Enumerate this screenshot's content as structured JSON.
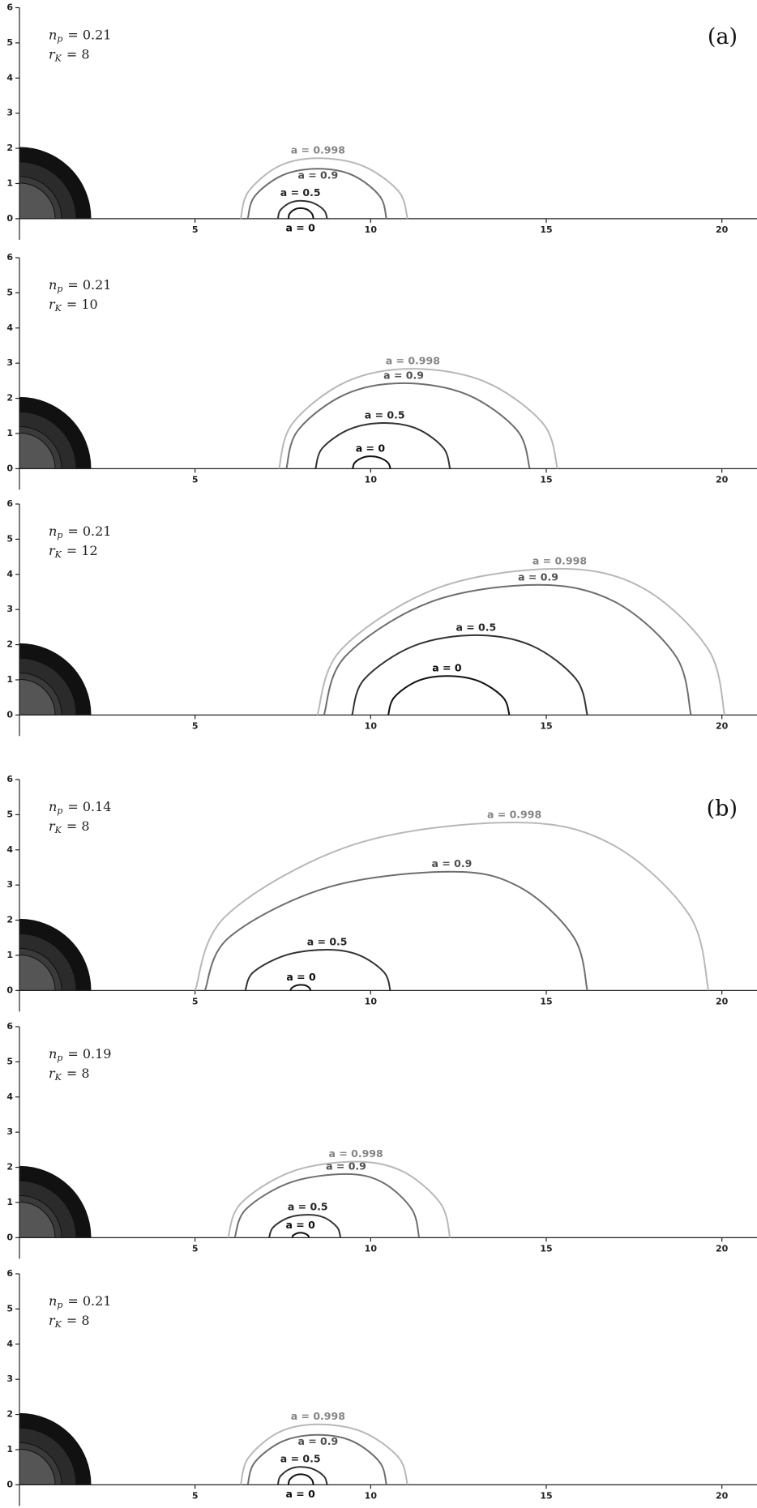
{
  "chart_data": [
    {
      "type": "line",
      "label": "(a)",
      "params": [
        {
          "symbol": "n",
          "sub": "p",
          "text": "= 0.21"
        },
        {
          "symbol": "r",
          "sub": "K",
          "text": "= 8"
        }
      ],
      "xlim": [
        0,
        21
      ],
      "ylim": [
        -0.6,
        6
      ],
      "xticks": [
        5,
        10,
        15,
        20
      ],
      "yticks": [
        0,
        1,
        2,
        3,
        4,
        5,
        6
      ],
      "series": [
        {
          "name": "a = 0",
          "color": "#111111",
          "x": [
            7.66,
            7.69,
            7.83,
            8.0,
            8.19,
            8.33,
            8.37
          ],
          "values": [
            0,
            0.14,
            0.26,
            0.3,
            0.26,
            0.14,
            0
          ]
        },
        {
          "name": "a = 0.5",
          "color": "#333333",
          "x": [
            7.36,
            7.42,
            7.68,
            8.0,
            8.38,
            8.68,
            8.76
          ],
          "values": [
            0,
            0.23,
            0.44,
            0.51,
            0.44,
            0.23,
            0
          ]
        },
        {
          "name": "a = 0.9",
          "color": "#6e6e6e",
          "x": [
            6.5,
            6.7,
            7.5,
            8.5,
            9.48,
            10.26,
            10.45
          ],
          "values": [
            0,
            0.64,
            1.24,
            1.42,
            1.24,
            0.64,
            0
          ]
        },
        {
          "name": "a = 0.998",
          "color": "#b8b8b8",
          "x": [
            6.3,
            6.52,
            7.4,
            8.5,
            9.78,
            10.8,
            11.05
          ],
          "values": [
            0,
            0.77,
            1.5,
            1.72,
            1.5,
            0.77,
            0
          ]
        }
      ]
    },
    {
      "type": "line",
      "params": [
        {
          "symbol": "n",
          "sub": "p",
          "text": "= 0.21"
        },
        {
          "symbol": "r",
          "sub": "K",
          "text": "= 10"
        }
      ],
      "xlim": [
        0,
        21
      ],
      "ylim": [
        -0.6,
        6
      ],
      "xticks": [
        5,
        10,
        15,
        20
      ],
      "yticks": [
        0,
        1,
        2,
        3,
        4,
        5,
        6
      ],
      "series": [
        {
          "name": "a = 0",
          "color": "#111111",
          "x": [
            9.49,
            9.54,
            9.74,
            9.99,
            10.28,
            10.5,
            10.56
          ],
          "values": [
            0,
            0.16,
            0.3,
            0.35,
            0.3,
            0.16,
            0
          ]
        },
        {
          "name": "a = 0.5",
          "color": "#333333",
          "x": [
            8.43,
            8.63,
            9.42,
            10.4,
            11.33,
            12.07,
            12.26
          ],
          "values": [
            0,
            0.59,
            1.13,
            1.3,
            1.13,
            0.59,
            0
          ]
        },
        {
          "name": "a = 0.9",
          "color": "#6e6e6e",
          "x": [
            7.6,
            7.93,
            9.27,
            10.94,
            12.74,
            14.17,
            14.53
          ],
          "values": [
            0,
            1.09,
            2.11,
            2.43,
            2.11,
            1.09,
            0
          ]
        },
        {
          "name": "a = 0.998",
          "color": "#b8b8b8",
          "x": [
            7.39,
            7.77,
            9.3,
            11.2,
            13.26,
            14.91,
            15.32
          ],
          "values": [
            0,
            1.28,
            2.47,
            2.84,
            2.47,
            1.28,
            0
          ]
        }
      ]
    },
    {
      "type": "line",
      "params": [
        {
          "symbol": "n",
          "sub": "p",
          "text": "= 0.21"
        },
        {
          "symbol": "r",
          "sub": "K",
          "text": "= 12"
        }
      ],
      "xlim": [
        0,
        21
      ],
      "ylim": [
        -0.6,
        6
      ],
      "xticks": [
        5,
        10,
        15,
        20
      ],
      "yticks": [
        0,
        1,
        2,
        3,
        4,
        5,
        6
      ],
      "series": [
        {
          "name": "a = 0",
          "color": "#111111",
          "x": [
            10.5,
            10.67,
            11.34,
            12.17,
            13.06,
            13.77,
            13.95
          ],
          "values": [
            0,
            0.5,
            0.97,
            1.11,
            0.97,
            0.5,
            0
          ]
        },
        {
          "name": "a = 0.5",
          "color": "#333333",
          "x": [
            9.47,
            9.82,
            11.24,
            13.0,
            14.59,
            15.85,
            16.17
          ],
          "values": [
            0,
            1.02,
            1.97,
            2.27,
            1.97,
            1.02,
            0
          ]
        },
        {
          "name": "a = 0.9",
          "color": "#6e6e6e",
          "x": [
            8.67,
            9.28,
            11.72,
            14.77,
            16.95,
            18.69,
            19.12
          ],
          "values": [
            0,
            1.67,
            3.22,
            3.7,
            3.22,
            1.67,
            0
          ]
        },
        {
          "name": "a = 0.998",
          "color": "#b8b8b8",
          "x": [
            8.48,
            9.17,
            11.93,
            15.38,
            17.73,
            19.61,
            20.08
          ],
          "values": [
            0,
            1.87,
            3.62,
            4.16,
            3.62,
            1.87,
            0
          ]
        }
      ]
    },
    {
      "type": "line",
      "label": "(b)",
      "params": [
        {
          "symbol": "n",
          "sub": "p",
          "text": "= 0.14"
        },
        {
          "symbol": "r",
          "sub": "K",
          "text": "= 8"
        }
      ],
      "xlim": [
        0,
        21
      ],
      "ylim": [
        -0.6,
        6
      ],
      "xticks": [
        5,
        10,
        15,
        20
      ],
      "yticks": [
        0,
        1,
        2,
        3,
        4,
        5,
        6
      ],
      "series": [
        {
          "name": "a = 0",
          "color": "#111111",
          "x": [
            7.72,
            7.75,
            7.87,
            8.02,
            8.16,
            8.26,
            8.29
          ],
          "values": [
            0,
            0.07,
            0.14,
            0.16,
            0.14,
            0.07,
            0
          ]
        },
        {
          "name": "a = 0.5",
          "color": "#333333",
          "x": [
            6.43,
            6.66,
            7.6,
            8.76,
            9.66,
            10.38,
            10.56
          ],
          "values": [
            0,
            0.52,
            1.01,
            1.16,
            1.01,
            0.52,
            0
          ]
        },
        {
          "name": "a = 0.9",
          "color": "#6e6e6e",
          "x": [
            5.28,
            5.98,
            8.8,
            12.31,
            14.24,
            15.78,
            16.17
          ],
          "values": [
            0,
            1.52,
            2.94,
            3.38,
            2.94,
            1.52,
            0
          ]
        },
        {
          "name": "a = 0.998",
          "color": "#b8b8b8",
          "x": [
            5.0,
            5.91,
            9.55,
            14.09,
            16.86,
            19.07,
            19.62
          ],
          "values": [
            0,
            2.15,
            4.16,
            4.78,
            4.16,
            2.15,
            0
          ]
        }
      ]
    },
    {
      "type": "line",
      "params": [
        {
          "symbol": "n",
          "sub": "p",
          "text": "= 0.19"
        },
        {
          "symbol": "r",
          "sub": "K",
          "text": "= 8"
        }
      ],
      "xlim": [
        0,
        21
      ],
      "ylim": [
        -0.6,
        6
      ],
      "xticks": [
        5,
        10,
        15,
        20
      ],
      "yticks": [
        0,
        1,
        2,
        3,
        4,
        5,
        6
      ],
      "series": [
        {
          "name": "a = 0",
          "color": "#111111",
          "x": [
            7.77,
            7.79,
            7.89,
            8.0,
            8.12,
            8.22,
            8.24
          ],
          "values": [
            0,
            0.06,
            0.12,
            0.14,
            0.12,
            0.06,
            0
          ]
        },
        {
          "name": "a = 0.5",
          "color": "#333333",
          "x": [
            7.11,
            7.22,
            7.66,
            8.21,
            8.68,
            9.05,
            9.14
          ],
          "values": [
            0,
            0.29,
            0.57,
            0.65,
            0.57,
            0.29,
            0
          ]
        },
        {
          "name": "a = 0.9",
          "color": "#6e6e6e",
          "x": [
            6.13,
            6.45,
            7.72,
            9.3,
            10.34,
            11.17,
            11.38
          ],
          "values": [
            0,
            0.81,
            1.57,
            1.81,
            1.57,
            0.81,
            0
          ]
        },
        {
          "name": "a = 0.998",
          "color": "#b8b8b8",
          "x": [
            5.94,
            6.3,
            7.76,
            9.58,
            10.92,
            11.99,
            12.26
          ],
          "values": [
            0,
            0.97,
            1.88,
            2.16,
            1.88,
            0.97,
            0
          ]
        }
      ]
    },
    {
      "type": "line",
      "params": [
        {
          "symbol": "n",
          "sub": "p",
          "text": "= 0.21"
        },
        {
          "symbol": "r",
          "sub": "K",
          "text": "= 8"
        }
      ],
      "xlim": [
        0,
        21
      ],
      "ylim": [
        -0.6,
        6
      ],
      "xticks": [
        5,
        10,
        15,
        20
      ],
      "yticks": [
        0,
        1,
        2,
        3,
        4,
        5,
        6
      ],
      "series": [
        {
          "name": "a = 0",
          "color": "#111111",
          "x": [
            7.66,
            7.69,
            7.83,
            8.0,
            8.19,
            8.33,
            8.37
          ],
          "values": [
            0,
            0.14,
            0.26,
            0.3,
            0.26,
            0.14,
            0
          ]
        },
        {
          "name": "a = 0.5",
          "color": "#333333",
          "x": [
            7.36,
            7.42,
            7.68,
            8.0,
            8.38,
            8.68,
            8.76
          ],
          "values": [
            0,
            0.23,
            0.44,
            0.51,
            0.44,
            0.23,
            0
          ]
        },
        {
          "name": "a = 0.9",
          "color": "#6e6e6e",
          "x": [
            6.5,
            6.7,
            7.5,
            8.5,
            9.48,
            10.26,
            10.45
          ],
          "values": [
            0,
            0.64,
            1.24,
            1.42,
            1.24,
            0.64,
            0
          ]
        },
        {
          "name": "a = 0.998",
          "color": "#b8b8b8",
          "x": [
            6.3,
            6.52,
            7.4,
            8.5,
            9.78,
            10.8,
            11.05
          ],
          "values": [
            0,
            0.77,
            1.5,
            1.72,
            1.5,
            0.77,
            0
          ]
        }
      ]
    }
  ]
}
